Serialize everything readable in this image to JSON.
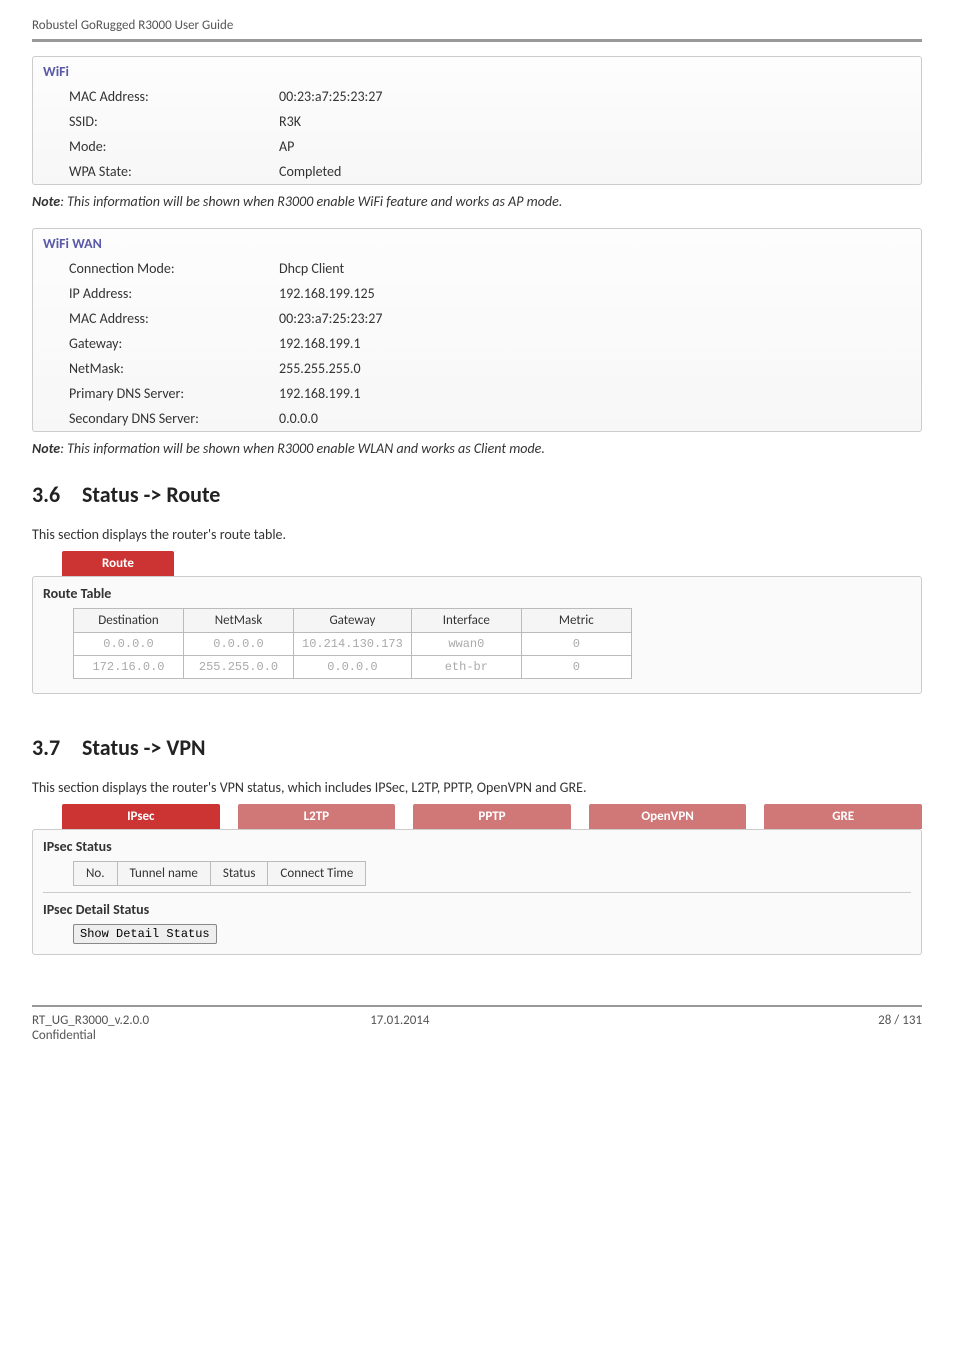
{
  "doc": {
    "header": "Robustel GoRugged R3000 User Guide",
    "footer_left_1": "RT_UG_R3000_v.2.0.0",
    "footer_left_2": "Confidential",
    "footer_center": "17.01.2014",
    "footer_right": "28 / 131"
  },
  "wifi": {
    "title": "WiFi",
    "rows": [
      {
        "label": "MAC Address:",
        "value": "00:23:a7:25:23:27"
      },
      {
        "label": "SSID:",
        "value": "R3K"
      },
      {
        "label": "Mode:",
        "value": "AP"
      },
      {
        "label": "WPA State:",
        "value": "Completed"
      }
    ],
    "note_bold": "Note",
    "note_rest": ": This information will be shown when R3000 enable WiFi feature and works as AP mode."
  },
  "wifiwan": {
    "title": "WiFi WAN",
    "rows": [
      {
        "label": "Connection Mode:",
        "value": "Dhcp Client"
      },
      {
        "label": "IP Address:",
        "value": "192.168.199.125"
      },
      {
        "label": "MAC Address:",
        "value": "00:23:a7:25:23:27"
      },
      {
        "label": "Gateway:",
        "value": "192.168.199.1"
      },
      {
        "label": "NetMask:",
        "value": "255.255.255.0"
      },
      {
        "label": "Primary DNS Server:",
        "value": "192.168.199.1"
      },
      {
        "label": "Secondary DNS Server:",
        "value": "0.0.0.0"
      }
    ],
    "note_bold": "Note",
    "note_rest": ": This information will be shown when R3000 enable WLAN and works as Client mode."
  },
  "route": {
    "heading_num": "3.6",
    "heading_text": "Status -> Route",
    "desc": "This section displays the router's route table.",
    "tab": "Route",
    "table_title": "Route Table",
    "columns": [
      "Destination",
      "NetMask",
      "Gateway",
      "Interface",
      "Metric"
    ],
    "rows": [
      [
        "0.0.0.0",
        "0.0.0.0",
        "10.214.130.173",
        "wwan0",
        "0"
      ],
      [
        "172.16.0.0",
        "255.255.0.0",
        "0.0.0.0",
        "eth-br",
        "0"
      ]
    ]
  },
  "vpn": {
    "heading_num": "3.7",
    "heading_text": "Status -> VPN",
    "desc": "This section displays the router's VPN status, which includes IPSec, L2TP, PPTP, OpenVPN and GRE.",
    "tabs": [
      "IPsec",
      "L2TP",
      "PPTP",
      "OpenVPN",
      "GRE"
    ],
    "active_tab_index": 0,
    "status_title": "IPsec Status",
    "status_columns": [
      "No.",
      "Tunnel name",
      "Status",
      "Connect Time"
    ],
    "detail_title": "IPsec Detail Status",
    "button": "Show Detail Status"
  }
}
